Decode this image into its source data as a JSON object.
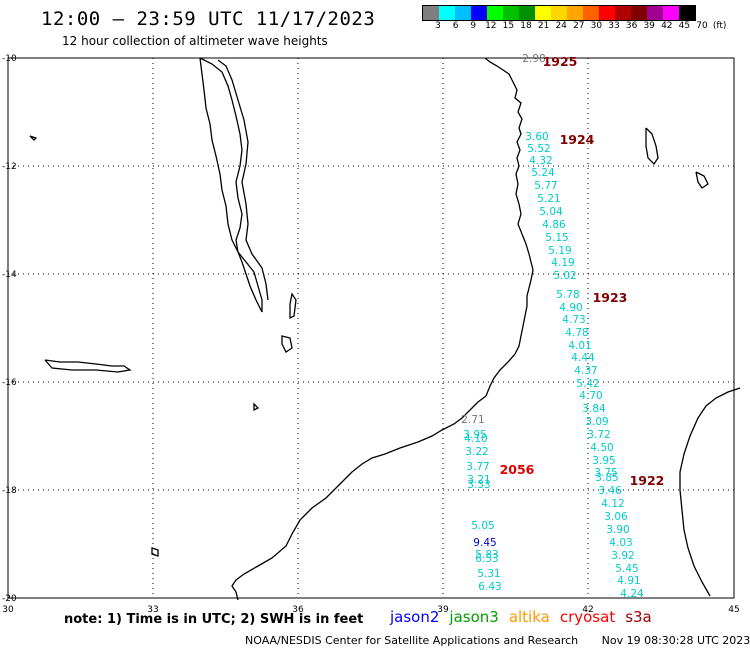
{
  "header": {
    "title": "12:00 – 23:59 UTC 11/17/2023",
    "subtitle": "12 hour collection of altimeter wave heights"
  },
  "colorbar": {
    "colors": [
      "#7f7f7f",
      "#00ffff",
      "#00bfff",
      "#0000ff",
      "#00ff00",
      "#00c000",
      "#009000",
      "#ffff00",
      "#ffd700",
      "#ffa500",
      "#ff6000",
      "#ff0000",
      "#b00000",
      "#800000",
      "#9f0090",
      "#ff00ff",
      "#000000"
    ],
    "labels": [
      "3",
      "6",
      "9",
      "12",
      "15",
      "18",
      "21",
      "24",
      "27",
      "30",
      "33",
      "36",
      "39",
      "42",
      "45",
      "70",
      "(ft)"
    ]
  },
  "axes": {
    "x_ticks": [
      "30",
      "33",
      "36",
      "39",
      "42",
      "45"
    ],
    "y_ticks": [
      "-10",
      "-12",
      "-14",
      "-16",
      "-18",
      "-20"
    ]
  },
  "times": [
    {
      "label": "1925",
      "color": "#800000"
    },
    {
      "label": "1924",
      "color": "#800000"
    },
    {
      "label": "1923",
      "color": "#800000"
    },
    {
      "label": "1922",
      "color": "#800000"
    },
    {
      "label": "2056",
      "color": "#e00000"
    }
  ],
  "tracks": {
    "east": {
      "color": "#00cccc",
      "values": [
        "2.98",
        "3.60",
        "5.52",
        "4.32",
        "5.24",
        "5.77",
        "5.21",
        "5.04",
        "4.86",
        "5.15",
        "5.19",
        "4.19",
        "5.02",
        "5.78",
        "4.90",
        "4.73",
        "4.78",
        "4.01",
        "4.44",
        "4.37",
        "5.42",
        "4.70",
        "3.84",
        "3.09",
        "3.72",
        "4.50",
        "3.95",
        "3.75",
        "3.85",
        "3.46",
        "4.12",
        "3.06",
        "3.90",
        "4.03",
        "3.92",
        "5.45",
        "4.91",
        "4.24"
      ]
    },
    "mid": {
      "color": "#00cccc",
      "values": [
        "2.71",
        "3.95",
        "4.10",
        "3.22",
        "3.77",
        "3.21",
        "3.33",
        "5.05",
        "9.45",
        "5.83",
        "6.53",
        "5.31",
        "6.43"
      ]
    }
  },
  "footer": {
    "note": "note: 1) Time is in UTC; 2) SWH is in feet",
    "satellites": [
      {
        "name": "jason2",
        "color": "#0000ff"
      },
      {
        "name": "jason3",
        "color": "#00a000"
      },
      {
        "name": "altika",
        "color": "#ff9900"
      },
      {
        "name": "cryosat",
        "color": "#ff0000"
      },
      {
        "name": "s3a",
        "color": "#a00000"
      }
    ],
    "credit": "NOAA/NESDIS Center for Satellite Applications and Research",
    "timestamp": "Nov 19 08:30:28 UTC 2023"
  }
}
